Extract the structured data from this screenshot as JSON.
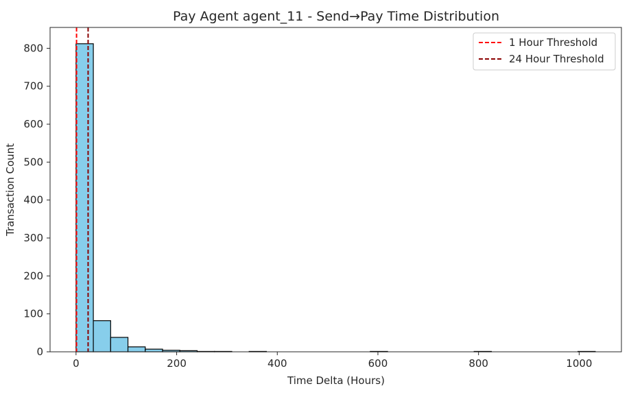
{
  "chart_data": {
    "type": "bar",
    "title": "Pay Agent agent_11 - Send→Pay Time Distribution",
    "xlabel": "Time Delta (Hours)",
    "ylabel": "Transaction Count",
    "xlim": [
      -51.6,
      1084.0
    ],
    "ylim": [
      0,
      855
    ],
    "xticks": [
      0,
      200,
      400,
      600,
      800,
      1000
    ],
    "yticks": [
      0,
      100,
      200,
      300,
      400,
      500,
      600,
      700,
      800
    ],
    "bin_edges": [
      0,
      34.4,
      68.8,
      103.2,
      137.6,
      172.0,
      206.4,
      240.8,
      275.2,
      309.6,
      344.0,
      378.4,
      412.8,
      447.2,
      481.6,
      516.0,
      550.4,
      584.8,
      619.2,
      653.6,
      688.0,
      722.4,
      756.8,
      791.2,
      825.6,
      860.0,
      894.4,
      928.8,
      963.2,
      997.6,
      1032.0
    ],
    "values": [
      812,
      82,
      38,
      13,
      7,
      4,
      3,
      1,
      1,
      0,
      1,
      0,
      0,
      0,
      0,
      0,
      0,
      1,
      0,
      0,
      0,
      0,
      0,
      1,
      0,
      0,
      0,
      0,
      0,
      1
    ],
    "bar_color": "#87ceeb",
    "edge_color": "#000000",
    "grid": false,
    "thresholds": [
      {
        "name": "1 Hour Threshold",
        "x": 1,
        "color": "#ff0000",
        "style": "dashed"
      },
      {
        "name": "24 Hour Threshold",
        "x": 24,
        "color": "#8b0000",
        "style": "dashed"
      }
    ],
    "legend_position": "top-right"
  }
}
